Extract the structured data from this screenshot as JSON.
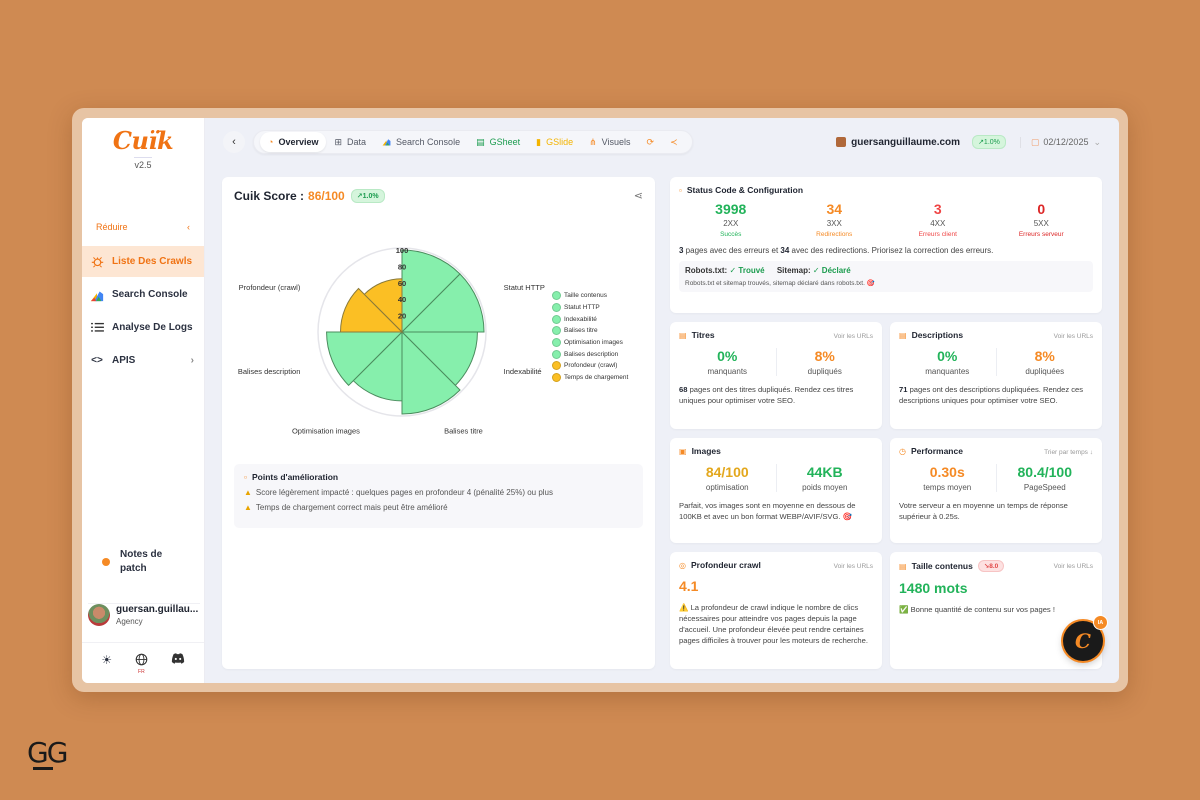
{
  "branding": {
    "logo": "Cuïk",
    "version": "v2.5",
    "watermark": "GG"
  },
  "sidebar": {
    "reduce_label": "Réduire",
    "reduce_icon": "chevron-left-icon",
    "items": [
      {
        "label": "Liste Des Crawls",
        "icon": "bug-icon",
        "active": true
      },
      {
        "label": "Search Console",
        "icon": "search-console-icon",
        "active": false
      },
      {
        "label": "Analyse De Logs",
        "icon": "list-icon",
        "active": false
      },
      {
        "label": "APIS",
        "icon": "code-icon",
        "active": false,
        "has_chevron": true
      }
    ],
    "patch_notes": "Notes de patch",
    "user": {
      "name": "guersan.guillau...",
      "role": "Agency"
    },
    "footer_icons": [
      "sun-icon",
      "globe-icon",
      "discord-icon"
    ],
    "language_flag": "FR"
  },
  "topbar": {
    "back_icon": "chevron-left-icon",
    "tabs": [
      {
        "label": "Overview",
        "icon": "overview-icon",
        "active": true
      },
      {
        "label": "Data",
        "icon": "table-icon"
      },
      {
        "label": "Search Console",
        "icon": "search-console-icon"
      },
      {
        "label": "GSheet",
        "icon": "gsheet-icon"
      },
      {
        "label": "GSlide",
        "icon": "gslide-icon"
      },
      {
        "label": "Visuels",
        "icon": "visuels-icon"
      }
    ],
    "refresh_icon": "refresh-icon",
    "share_icon": "share-icon",
    "site": "guersanguillaume.com",
    "trend": "↗1.0%",
    "date": "02/12/2025"
  },
  "score": {
    "title": "Cuik Score :",
    "value": "86/100",
    "trend": "↗1.0%",
    "improvements_title": "Points d'amélioration",
    "improvements": [
      "Score légèrement impacté : quelques pages en profondeur 4 (pénalité 25%) ou plus",
      "Temps de chargement correct mais peut être amélioré"
    ]
  },
  "chart_data": {
    "type": "polarArea",
    "title": "Cuik Score",
    "categories": [
      "Taille contenus",
      "Statut HTTP",
      "Indexabilité",
      "Balises titre",
      "Optimisation images",
      "Balises description",
      "Profondeur (crawl)",
      "Temps de chargement"
    ],
    "values": [
      100,
      100,
      92,
      100,
      84,
      92,
      75,
      65
    ],
    "colors": [
      "#86efac",
      "#86efac",
      "#86efac",
      "#86efac",
      "#86efac",
      "#86efac",
      "#fbbf24",
      "#fbbf24"
    ],
    "r_ticks": [
      "20",
      "40",
      "60",
      "80",
      "100"
    ],
    "r_range": [
      0,
      100
    ],
    "legend_position": "right"
  },
  "status": {
    "title": "Status Code & Configuration",
    "cols": [
      {
        "num": "3998",
        "code": "2XX",
        "label": "Succès",
        "color": "#22b35a"
      },
      {
        "num": "34",
        "code": "3XX",
        "label": "Redirections",
        "color": "#f58a25"
      },
      {
        "num": "3",
        "code": "4XX",
        "label": "Erreurs client",
        "color": "#ef4444"
      },
      {
        "num": "0",
        "code": "5XX",
        "label": "Erreurs serveur",
        "color": "#dc2626"
      }
    ],
    "msg_a": "3",
    "msg_b": " pages avec des erreurs et ",
    "msg_c": "34",
    "msg_d": " avec des redirections. Priorisez la correction des erreurs.",
    "robots_label": "Robots.txt:",
    "robots_value": "✓ Trouvé",
    "sitemap_label": "Sitemap:",
    "sitemap_value": "✓ Déclaré",
    "robots_note": "Robots.txt et sitemap trouvés, sitemap déclaré dans robots.txt. 🎯"
  },
  "titres": {
    "title": "Titres",
    "link": "Voir les URLs",
    "a_val": "0%",
    "a_lbl": "manquants",
    "b_val": "8%",
    "b_lbl": "dupliqués",
    "desc_num": "68",
    "desc": " pages ont des titres dupliqués. Rendez ces titres uniques pour optimiser votre SEO."
  },
  "descriptions": {
    "title": "Descriptions",
    "link": "Voir les URLs",
    "a_val": "0%",
    "a_lbl": "manquantes",
    "b_val": "8%",
    "b_lbl": "dupliquées",
    "desc_num": "71",
    "desc": " pages ont des descriptions dupliquées. Rendez ces descriptions uniques pour optimiser votre SEO."
  },
  "images": {
    "title": "Images",
    "a_val": "84/100",
    "a_lbl": "optimisation",
    "b_val": "44KB",
    "b_lbl": "poids moyen",
    "desc": "Parfait, vos images sont en moyenne en dessous de 100KB et avec un bon format WEBP/AVIF/SVG. 🎯"
  },
  "performance": {
    "title": "Performance",
    "link": "Trier par temps ↓",
    "a_val": "0.30s",
    "a_lbl": "temps moyen",
    "b_val": "80.4/100",
    "b_lbl": "PageSpeed",
    "desc": "Votre serveur a en moyenne un temps de réponse supérieur à 0.25s."
  },
  "profondeur": {
    "title": "Profondeur crawl",
    "link": "Voir les URLs",
    "value": "4.1",
    "desc": "⚠️ La profondeur de crawl indique le nombre de clics nécessaires pour atteindre vos pages depuis la page d'accueil. Une profondeur élevée peut rendre certaines pages difficiles à trouver pour les moteurs de recherche."
  },
  "taille": {
    "title": "Taille contenus",
    "badge": "↘8.0",
    "link": "Voir les URLs",
    "value": "1480 mots",
    "desc": "✅ Bonne quantité de contenu sur vos pages !"
  },
  "ia_button": {
    "letter": "C",
    "badge": "IA"
  }
}
